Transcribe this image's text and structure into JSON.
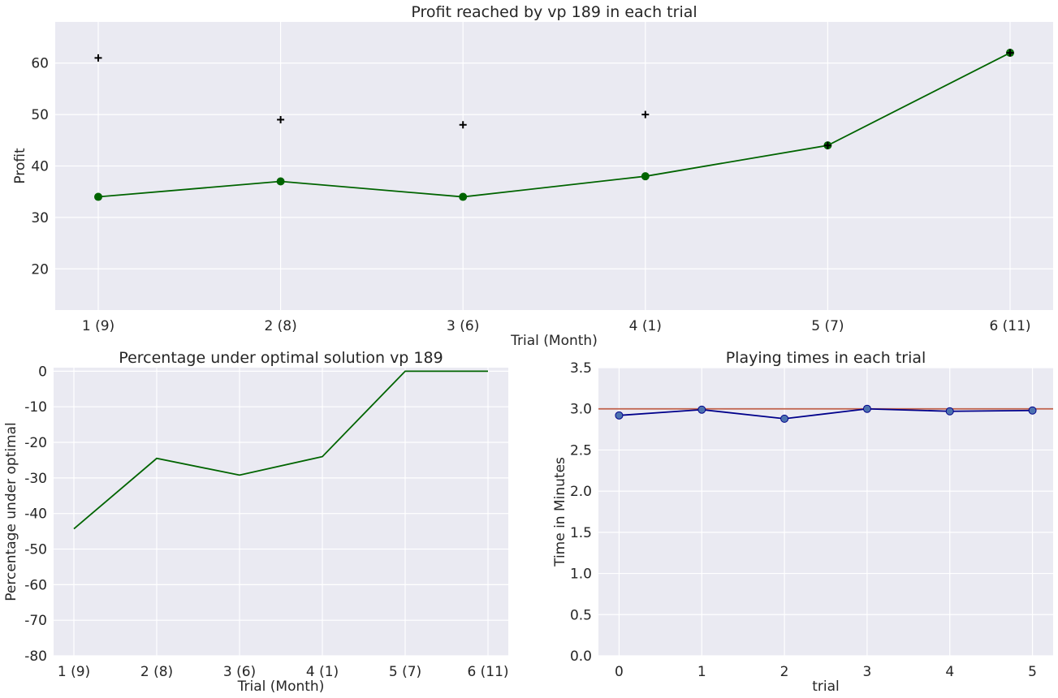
{
  "chart_data": [
    {
      "type": "line",
      "title": "Profit reached by vp 189 in each trial",
      "xlabel": "Trial (Month)",
      "ylabel": "Profit",
      "categories": [
        "1 (9)",
        "2 (8)",
        "3 (6)",
        "4 (1)",
        "5 (7)",
        "6 (11)"
      ],
      "ylim": [
        12,
        68
      ],
      "yticks": [
        20,
        30,
        40,
        50,
        60
      ],
      "grid": true,
      "series": [
        {
          "marker": "circle",
          "line": true,
          "color": "#006400",
          "values": [
            34,
            37,
            34,
            38,
            44,
            62
          ]
        },
        {
          "marker": "plus",
          "line": false,
          "color": "#000000",
          "values": [
            61,
            49,
            48,
            50,
            44,
            62
          ]
        }
      ]
    },
    {
      "type": "line",
      "title": "Percentage under optimal solution vp 189",
      "xlabel": "Trial (Month)",
      "ylabel": "Percentage under optimal",
      "categories": [
        "1 (9)",
        "2 (8)",
        "3 (6)",
        "4 (1)",
        "5 (7)",
        "6 (11)"
      ],
      "ylim": [
        -80,
        1
      ],
      "yticks": [
        0,
        -10,
        -20,
        -30,
        -40,
        -50,
        -60,
        -70,
        -80
      ],
      "grid": true,
      "series": [
        {
          "marker": "none",
          "line": true,
          "color": "#006400",
          "values": [
            -44.3,
            -24.5,
            -29.2,
            -24.0,
            0,
            0
          ]
        }
      ]
    },
    {
      "type": "line",
      "title": "Playing times in each trial",
      "xlabel": "trial",
      "ylabel": "Time in Minutes",
      "x": [
        0,
        1,
        2,
        3,
        4,
        5
      ],
      "xlim": [
        -0.25,
        5.25
      ],
      "ylim": [
        0,
        3.5
      ],
      "yticks": [
        "0.0",
        "0.5",
        "1.0",
        "1.5",
        "2.0",
        "2.5",
        "3.0",
        "3.5"
      ],
      "grid": true,
      "reference_line": {
        "y": 3.0,
        "color": "#c0604a"
      },
      "series": [
        {
          "marker": "circle",
          "line": true,
          "color": "#00008b",
          "marker_color": "#4c72b0",
          "values": [
            2.92,
            2.99,
            2.88,
            3.0,
            2.97,
            2.98
          ]
        }
      ]
    }
  ]
}
